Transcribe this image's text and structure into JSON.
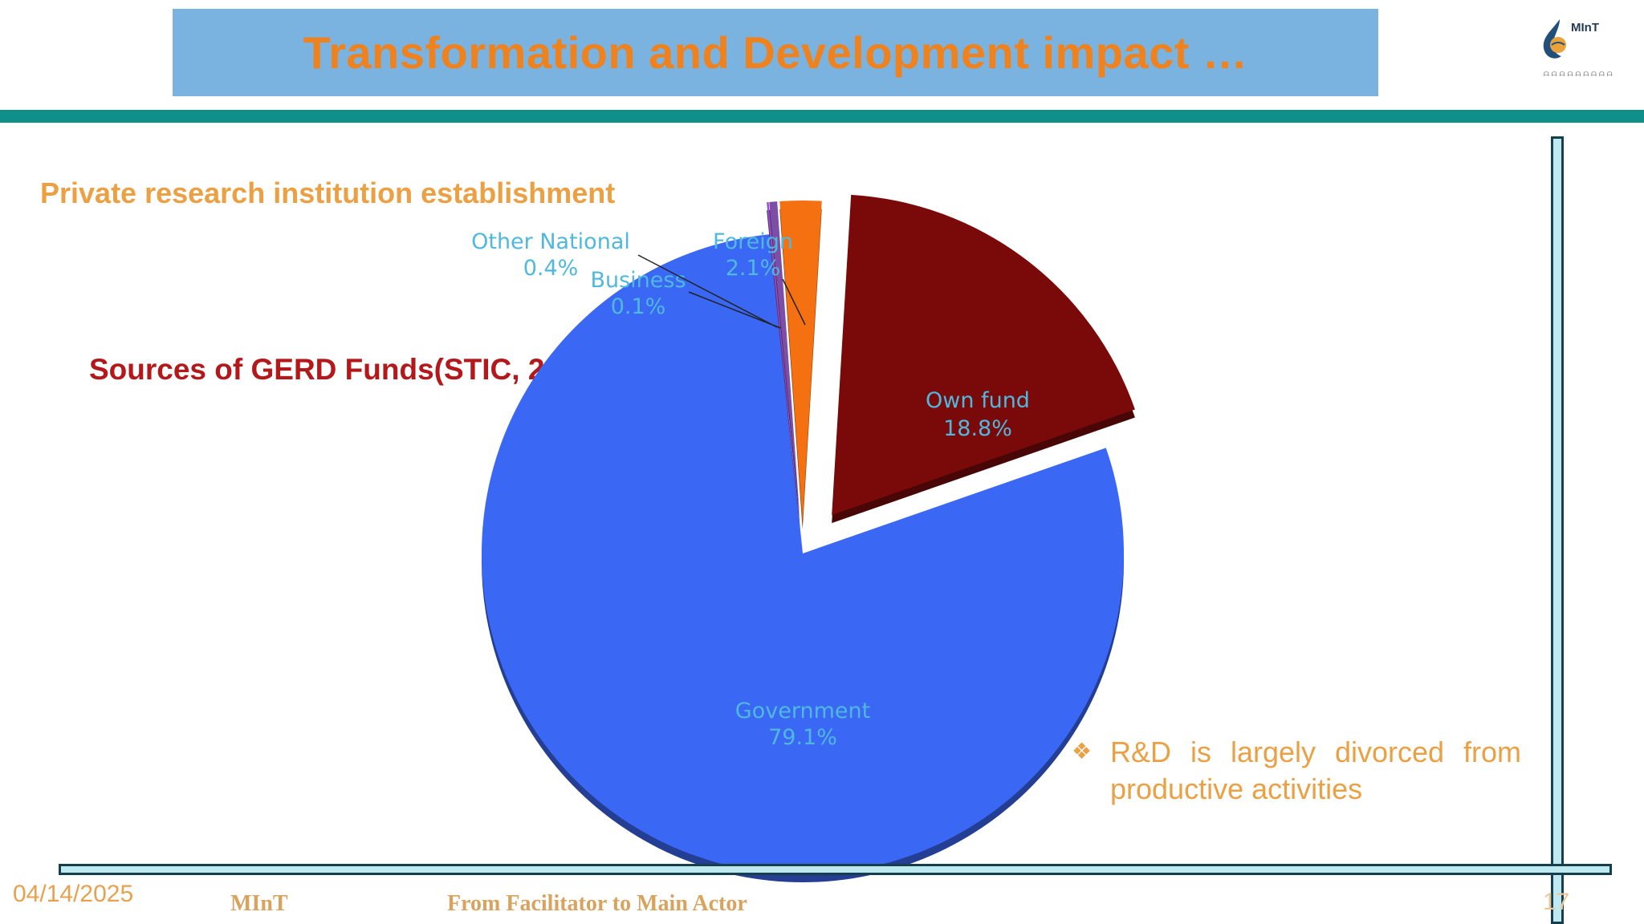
{
  "slide": {
    "title": "Transformation and Development impact …",
    "subtitle": "Private research institution establishment",
    "note": "R&D is largely divorced from productive activities"
  },
  "logo": {
    "name": "MInT"
  },
  "footer": {
    "date": "04/14/2025",
    "org": "MInT",
    "tagline": "From Facilitator to Main Actor",
    "page": "17"
  },
  "colors": {
    "title": "#f0821e",
    "title_band": "#7ab3df",
    "teal_bar": "#0f8f8a",
    "chart_title": "#b3181b",
    "accent_text": "#eba044",
    "label_text": "#4fb8dd"
  },
  "chart_data": {
    "type": "pie",
    "title": "Sources of GERD Funds(STIC, 2014)",
    "style": "3d-exploded",
    "slices": [
      {
        "label": "Own fund",
        "value": 18.8,
        "display": "18.8%",
        "color": "#7a0a0a"
      },
      {
        "label": "Government",
        "value": 79.1,
        "display": "79.1%",
        "color": "#3a68f5"
      },
      {
        "label": "Business",
        "value": 0.1,
        "display": "0.1%",
        "color": "#9a4fc7"
      },
      {
        "label": "Other National",
        "value": 0.4,
        "display": "0.4%",
        "color": "#7d4ea8"
      },
      {
        "label": "Foreign",
        "value": 2.1,
        "display": "2.1%",
        "color": "#f57010"
      }
    ]
  }
}
